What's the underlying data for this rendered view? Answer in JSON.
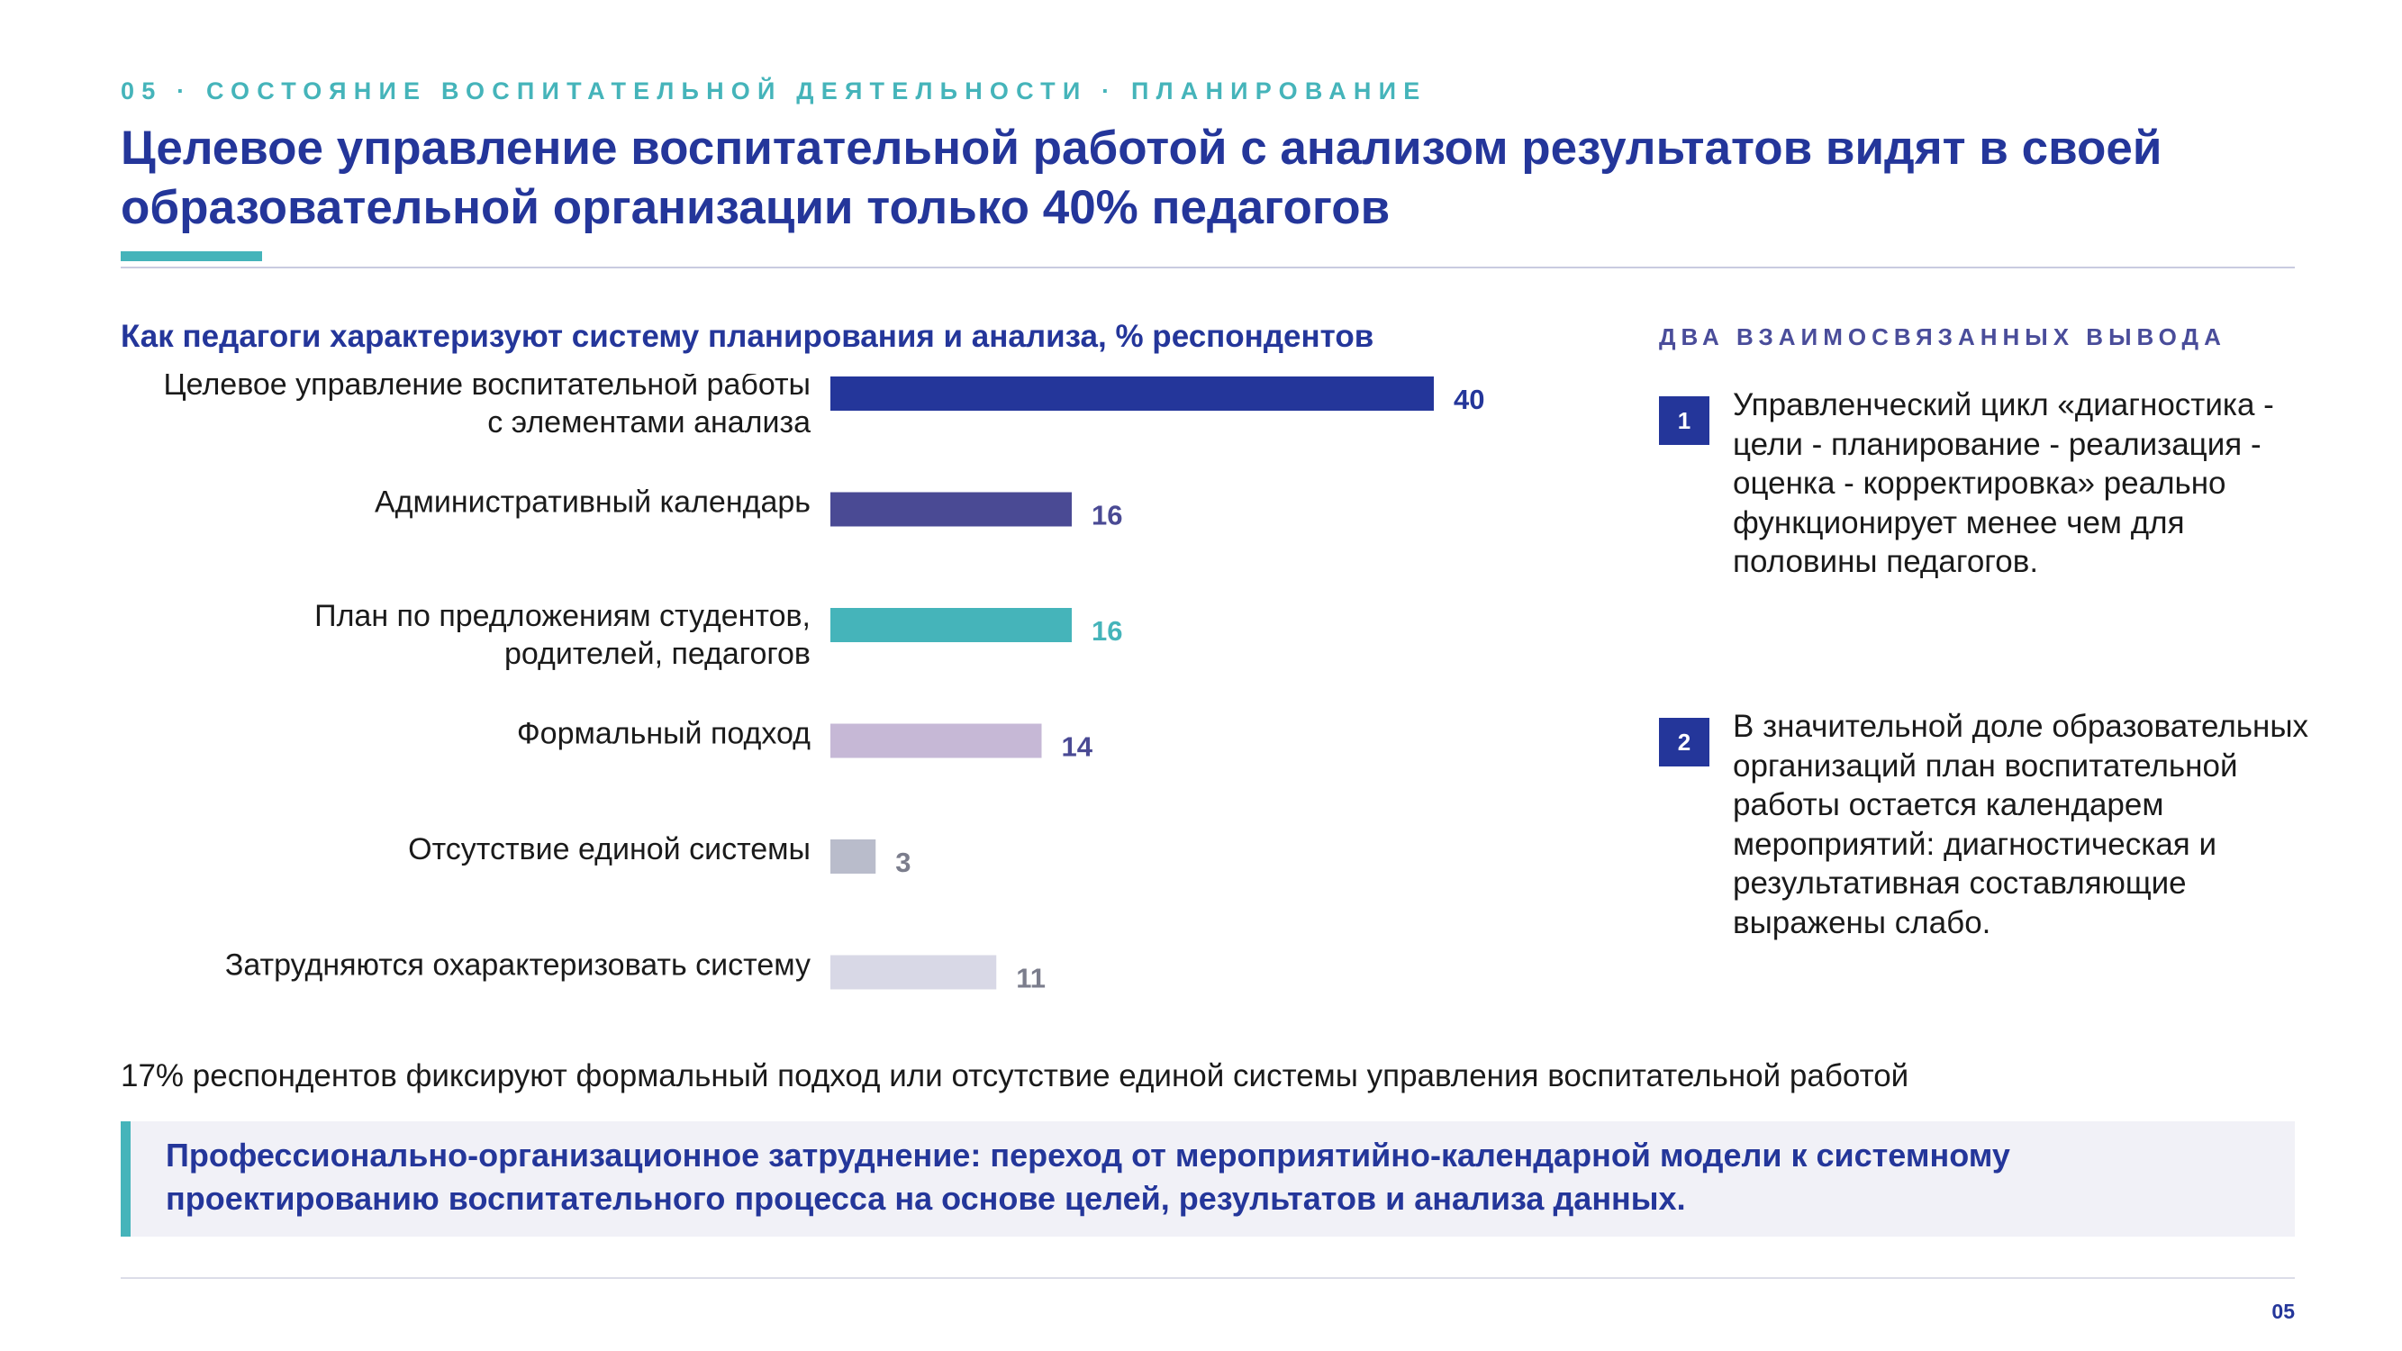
{
  "header": {
    "kicker": "05 · СОСТОЯНИЕ ВОСПИТАТЕЛЬНОЙ ДЕЯТЕЛЬНОСТИ · ПЛАНИРОВАНИЕ",
    "title": "Целевое управление воспитательной работой с анализом результатов видят в своей образовательной организации только 40% педагогов"
  },
  "chart_data": {
    "type": "bar",
    "orientation": "horizontal",
    "title": "Как педагоги характеризуют систему планирования и анализа, % респондентов",
    "categories": [
      [
        "Целевое управление воспитательной работы",
        "с элементами анализа"
      ],
      [
        "Административный календарь"
      ],
      [
        "План по предложениям студентов,",
        "родителей, педагогов"
      ],
      [
        "Формальный подход"
      ],
      [
        "Отсутствие единой системы"
      ],
      [
        "Затрудняются охарактеризовать систему"
      ]
    ],
    "values": [
      40,
      16,
      16,
      14,
      3,
      11
    ],
    "bar_colors": [
      "#24369a",
      "#4a4a94",
      "#45b4ba",
      "#c6b8d6",
      "#b9bccb",
      "#d8d8e6"
    ],
    "label_colors": [
      "#24369a",
      "#4a4a94",
      "#45b4ba",
      "#4a4a94",
      "#7b7d8c",
      "#7b7d8c"
    ],
    "xlim": [
      0,
      40
    ],
    "grid": false,
    "legend": "none",
    "data_labels": true
  },
  "findings": {
    "title": "ДВА ВЗАИМОСВЯЗАННЫХ ВЫВОДА",
    "items": [
      {
        "num": "1",
        "text": "Управленческий цикл «диагностика - цели - планирование - реализация - оценка - корректировка» реально функционирует менее чем для половины педагогов."
      },
      {
        "num": "2",
        "text": "В значительной доле образовательных организаций план воспитательной работы остается календарем мероприятий: диагностическая и результативная составляющие выражены слабо."
      }
    ]
  },
  "note": "17% респондентов фиксируют формальный подход или отсутствие единой системы управления воспитательной работой",
  "callout": "Профессионально-организационное затруднение: переход от мероприятийно-календарной модели к системному проектированию воспитательного процесса на основе целей, результатов и анализа данных.",
  "footer": {
    "page": "05"
  }
}
